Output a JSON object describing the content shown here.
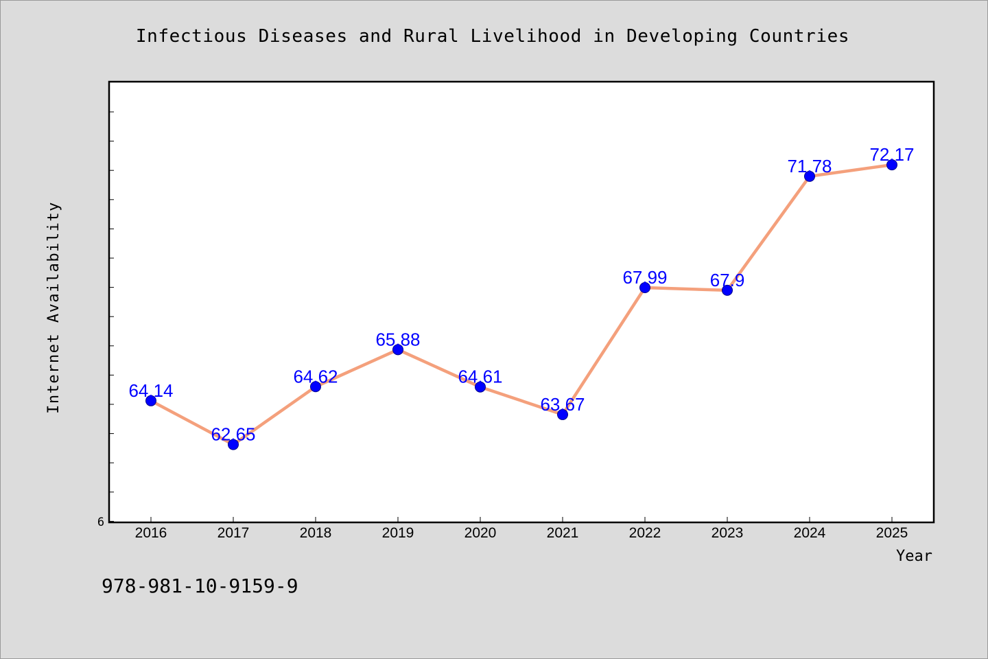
{
  "chart_data": {
    "type": "line",
    "title": "Infectious Diseases and Rural Livelihood in Developing Countries",
    "xlabel": "Year",
    "ylabel": "Internet Availability",
    "x": [
      "2016",
      "2017",
      "2018",
      "2019",
      "2020",
      "2021",
      "2022",
      "2023",
      "2024",
      "2025"
    ],
    "series": [
      {
        "values": [
          64.14,
          62.65,
          64.62,
          65.88,
          64.61,
          63.67,
          67.99,
          67.9,
          71.78,
          72.17
        ],
        "labels": [
          "64.14",
          "62.65",
          "64.62",
          "65.88",
          "64.61",
          "63.67",
          "67.99",
          "67.9",
          "71.78",
          "72.17"
        ]
      }
    ],
    "y_tick_labels": [
      "6"
    ],
    "ylim": [
      60.0,
      75.0
    ],
    "grid": false,
    "legend": "none",
    "colors": {
      "line": "#f4a07c",
      "marker": "#0000ff",
      "data_label": "#0000ff",
      "background": "#dcdcdc",
      "plot_background": "#ffffff"
    }
  },
  "footer_text": "978-981-10-9159-9"
}
